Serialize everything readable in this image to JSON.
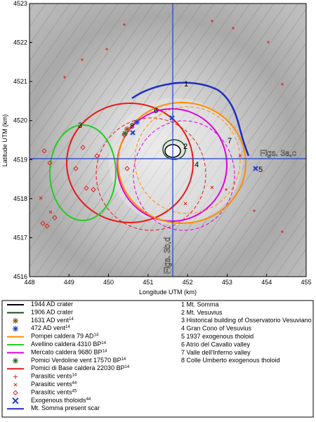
{
  "map": {
    "xlabel": "Longitude UTM (km)",
    "ylabel": "Latitude UTM (km)",
    "xlim": [
      448,
      455
    ],
    "ylim": [
      4516,
      4523
    ],
    "xticks": [
      448,
      449,
      450,
      451,
      452,
      453,
      454,
      455
    ],
    "yticks": [
      4516,
      4517,
      4518,
      4519,
      4520,
      4521,
      4522,
      4523
    ],
    "section_labels": [
      "Figs. 3a,c",
      "Figs. 3b,d"
    ],
    "place_numbers": [
      "1",
      "2",
      "3",
      "4",
      "5",
      "6",
      "7",
      "8"
    ]
  },
  "legend": {
    "symbols": [
      {
        "label": "1944 AD crater",
        "symbol": "line",
        "color": "#000000"
      },
      {
        "label": "1906 AD crater",
        "symbol": "line",
        "color": "#1a4d1a"
      },
      {
        "label": "1631 AD vent",
        "sup": "14",
        "symbol": "asterisk",
        "color": "#8b5a2b"
      },
      {
        "label": "472 AD vent",
        "sup": "14",
        "symbol": "asterisk",
        "color": "#1f3fd0"
      },
      {
        "label": "Pompei caldera 79 AD",
        "sup": "14",
        "symbol": "line",
        "color": "#ff8c00"
      },
      {
        "label": "Avellino caldera 4310 BP",
        "sup": "14",
        "symbol": "line",
        "color": "#22cc22"
      },
      {
        "label": "Mercato caldera 9680 BP",
        "sup": "14",
        "symbol": "line",
        "color": "#dd00dd"
      },
      {
        "label": "Pomici Verdoline vent 17570 BP",
        "sup": "14",
        "symbol": "asterisk",
        "color": "#2e6b2e"
      },
      {
        "label": "Pomici di Base caldera 22030 BP",
        "sup": "14",
        "symbol": "line",
        "color": "#e81818"
      },
      {
        "label": "Parasitic vents",
        "sup": "14",
        "symbol": "plus",
        "color": "#e02020"
      },
      {
        "label": "Parasitic vents",
        "sup": "44",
        "symbol": "x",
        "color": "#e02020"
      },
      {
        "label": "Parasitic vents",
        "sup": "45",
        "symbol": "diamond",
        "color": "#e02020"
      },
      {
        "label": "Exogenous tholoids",
        "sup": "44",
        "symbol": "bigx",
        "color": "#1f3fd0"
      },
      {
        "label": "Mt. Somma present scar",
        "symbol": "line",
        "color": "#1f2fc0"
      }
    ],
    "places": [
      "1 Mt. Somma",
      "2 Mt. Vesuvius",
      "3 Historical building of Osservatorio Vesuviano",
      "4 Gran Cono of Vesuvius",
      "5 1937 exogenous tholoid",
      "6 Atrio del Cavallo valley",
      "7 Valle dell'Inferno valley",
      "8 Colle Umberto exogenous tholoid"
    ]
  }
}
